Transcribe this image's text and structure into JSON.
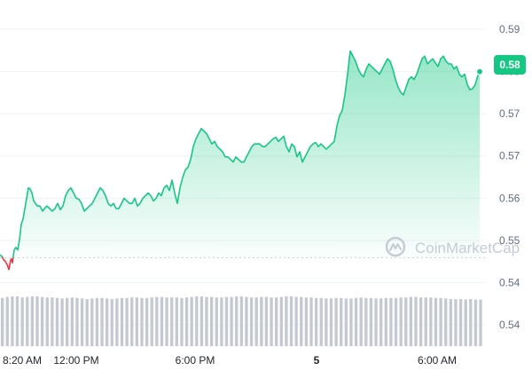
{
  "watermark": {
    "text": "CoinMarketCap"
  },
  "colors": {
    "line_up": "#16c784",
    "line_down": "#ea3943",
    "grid": "#eff2f5",
    "baseline": "#c8cdd4",
    "volume": "#c4c9d1",
    "badge": "#16c784"
  },
  "chart_data": {
    "type": "line",
    "title": "",
    "xlabel": "",
    "ylabel": "",
    "ylim": [
      0.5355,
      0.5927
    ],
    "y_tick_labels": [
      "0.59",
      "0.58",
      "0.57",
      "0.57",
      "0.56",
      "0.55",
      "0.54",
      "0.54"
    ],
    "x_tick_labels": [
      "8:20 AM",
      "12:00 PM",
      "6:00 PM",
      "5",
      "6:00 AM"
    ],
    "baseline_value": 0.5485,
    "last_price_label": "0.58",
    "series": [
      {
        "points": [
          [
            0,
            0.549
          ],
          [
            2,
            0.5488
          ],
          [
            4,
            0.5481
          ],
          [
            6,
            0.5478
          ],
          [
            8,
            0.5472
          ],
          [
            10,
            0.5462
          ],
          [
            12,
            0.548
          ],
          [
            13,
            0.5483
          ],
          [
            14,
            0.5475
          ],
          [
            16,
            0.55
          ],
          [
            18,
            0.5505
          ],
          [
            20,
            0.55
          ],
          [
            22,
            0.552
          ],
          [
            24,
            0.555
          ],
          [
            26,
            0.556
          ],
          [
            28,
            0.558
          ],
          [
            30,
            0.56
          ],
          [
            32,
            0.562
          ],
          [
            34,
            0.5618
          ],
          [
            36,
            0.561
          ],
          [
            38,
            0.5595
          ],
          [
            40,
            0.559
          ],
          [
            42,
            0.5585
          ],
          [
            45,
            0.5585
          ],
          [
            48,
            0.5575
          ],
          [
            50,
            0.558
          ],
          [
            53,
            0.5585
          ],
          [
            56,
            0.558
          ],
          [
            59,
            0.5575
          ],
          [
            62,
            0.558
          ],
          [
            65,
            0.559
          ],
          [
            68,
            0.5578
          ],
          [
            71,
            0.5585
          ],
          [
            74,
            0.5605
          ],
          [
            77,
            0.5615
          ],
          [
            80,
            0.562
          ],
          [
            83,
            0.561
          ],
          [
            86,
            0.56
          ],
          [
            89,
            0.5598
          ],
          [
            92,
            0.559
          ],
          [
            95,
            0.5575
          ],
          [
            98,
            0.558
          ],
          [
            101,
            0.5585
          ],
          [
            104,
            0.559
          ],
          [
            107,
            0.56
          ],
          [
            110,
            0.561
          ],
          [
            113,
            0.562
          ],
          [
            116,
            0.5615
          ],
          [
            119,
            0.5605
          ],
          [
            122,
            0.559
          ],
          [
            125,
            0.5585
          ],
          [
            128,
            0.559
          ],
          [
            131,
            0.558
          ],
          [
            134,
            0.558
          ],
          [
            137,
            0.559
          ],
          [
            140,
            0.56
          ],
          [
            143,
            0.5595
          ],
          [
            146,
            0.559
          ],
          [
            149,
            0.559
          ],
          [
            152,
            0.56
          ],
          [
            155,
            0.5585
          ],
          [
            158,
            0.559
          ],
          [
            161,
            0.56
          ],
          [
            164,
            0.5605
          ],
          [
            167,
            0.561
          ],
          [
            170,
            0.5605
          ],
          [
            173,
            0.5595
          ],
          [
            176,
            0.56
          ],
          [
            179,
            0.561
          ],
          [
            182,
            0.5605
          ],
          [
            185,
            0.562
          ],
          [
            188,
            0.5625
          ],
          [
            191,
            0.5615
          ],
          [
            194,
            0.5635
          ],
          [
            197,
            0.561
          ],
          [
            200,
            0.559
          ],
          [
            203,
            0.562
          ],
          [
            206,
            0.564
          ],
          [
            209,
            0.5655
          ],
          [
            212,
            0.566
          ],
          [
            215,
            0.5675
          ],
          [
            218,
            0.57
          ],
          [
            221,
            0.5715
          ],
          [
            224,
            0.5725
          ],
          [
            227,
            0.5735
          ],
          [
            230,
            0.573
          ],
          [
            233,
            0.5725
          ],
          [
            236,
            0.5715
          ],
          [
            239,
            0.5705
          ],
          [
            242,
            0.571
          ],
          [
            245,
            0.57
          ],
          [
            248,
            0.5695
          ],
          [
            251,
            0.569
          ],
          [
            254,
            0.568
          ],
          [
            257,
            0.568
          ],
          [
            260,
            0.5675
          ],
          [
            263,
            0.567
          ],
          [
            266,
            0.568
          ],
          [
            269,
            0.5675
          ],
          [
            272,
            0.567
          ],
          [
            275,
            0.567
          ],
          [
            278,
            0.568
          ],
          [
            281,
            0.569
          ],
          [
            284,
            0.57
          ],
          [
            287,
            0.5705
          ],
          [
            290,
            0.5705
          ],
          [
            293,
            0.5705
          ],
          [
            296,
            0.57
          ],
          [
            299,
            0.57
          ],
          [
            302,
            0.5705
          ],
          [
            305,
            0.571
          ],
          [
            308,
            0.5715
          ],
          [
            311,
            0.5718
          ],
          [
            314,
            0.571
          ],
          [
            317,
            0.5715
          ],
          [
            320,
            0.572
          ],
          [
            323,
            0.57
          ],
          [
            326,
            0.569
          ],
          [
            329,
            0.5705
          ],
          [
            332,
            0.57
          ],
          [
            335,
            0.568
          ],
          [
            338,
            0.569
          ],
          [
            341,
            0.567
          ],
          [
            344,
            0.568
          ],
          [
            347,
            0.569
          ],
          [
            350,
            0.57
          ],
          [
            353,
            0.5705
          ],
          [
            356,
            0.5708
          ],
          [
            359,
            0.57
          ],
          [
            362,
            0.5705
          ],
          [
            365,
            0.57
          ],
          [
            368,
            0.5695
          ],
          [
            371,
            0.57
          ],
          [
            374,
            0.5705
          ],
          [
            377,
            0.571
          ],
          [
            380,
            0.574
          ],
          [
            383,
            0.576
          ],
          [
            386,
            0.577
          ],
          [
            389,
            0.58
          ],
          [
            392,
            0.584
          ],
          [
            395,
            0.5885
          ],
          [
            398,
            0.5875
          ],
          [
            401,
            0.5865
          ],
          [
            404,
            0.585
          ],
          [
            407,
            0.584
          ],
          [
            410,
            0.5835
          ],
          [
            413,
            0.585
          ],
          [
            416,
            0.586
          ],
          [
            419,
            0.5855
          ],
          [
            422,
            0.585
          ],
          [
            425,
            0.5845
          ],
          [
            428,
            0.584
          ],
          [
            431,
            0.585
          ],
          [
            434,
            0.586
          ],
          [
            437,
            0.587
          ],
          [
            440,
            0.5865
          ],
          [
            443,
            0.585
          ],
          [
            446,
            0.583
          ],
          [
            449,
            0.5815
          ],
          [
            452,
            0.5805
          ],
          [
            455,
            0.58
          ],
          [
            458,
            0.5815
          ],
          [
            461,
            0.583
          ],
          [
            464,
            0.5835
          ],
          [
            467,
            0.583
          ],
          [
            470,
            0.584
          ],
          [
            473,
            0.5855
          ],
          [
            476,
            0.587
          ],
          [
            479,
            0.5875
          ],
          [
            482,
            0.586
          ],
          [
            485,
            0.5865
          ],
          [
            488,
            0.587
          ],
          [
            491,
            0.5862
          ],
          [
            494,
            0.5855
          ],
          [
            497,
            0.587
          ],
          [
            500,
            0.5875
          ],
          [
            503,
            0.5865
          ],
          [
            506,
            0.586
          ],
          [
            509,
            0.586
          ],
          [
            512,
            0.585
          ],
          [
            515,
            0.5855
          ],
          [
            518,
            0.584
          ],
          [
            521,
            0.5835
          ],
          [
            524,
            0.584
          ],
          [
            527,
            0.582
          ],
          [
            530,
            0.581
          ],
          [
            533,
            0.5812
          ],
          [
            536,
            0.582
          ],
          [
            539,
            0.5838
          ],
          [
            541,
            0.5845
          ]
        ]
      }
    ],
    "volume": [
      0.92,
      0.94,
      0.95,
      0.95,
      0.93,
      0.94,
      0.95,
      0.95,
      0.94,
      0.93,
      0.93,
      0.92,
      0.91,
      0.92,
      0.93,
      0.92,
      0.91,
      0.9,
      0.91,
      0.92,
      0.92,
      0.91,
      0.9,
      0.91,
      0.92,
      0.92,
      0.93,
      0.93,
      0.92,
      0.92,
      0.93,
      0.94,
      0.94,
      0.93,
      0.93,
      0.93,
      0.92,
      0.93,
      0.94,
      0.95,
      0.95,
      0.94,
      0.94,
      0.93,
      0.93,
      0.94,
      0.94,
      0.95,
      0.95,
      0.94,
      0.93,
      0.93,
      0.94,
      0.94,
      0.93,
      0.93,
      0.94,
      0.95,
      0.95,
      0.94,
      0.94,
      0.93,
      0.93,
      0.92,
      0.92,
      0.91,
      0.91,
      0.92,
      0.92,
      0.91,
      0.91,
      0.92,
      0.93,
      0.92,
      0.92,
      0.91,
      0.91,
      0.92,
      0.92,
      0.92,
      0.93,
      0.93,
      0.94,
      0.94,
      0.93,
      0.93,
      0.93,
      0.92,
      0.92,
      0.91,
      0.9,
      0.9,
      0.9,
      0.89,
      0.9,
      0.89,
      0.89
    ]
  }
}
